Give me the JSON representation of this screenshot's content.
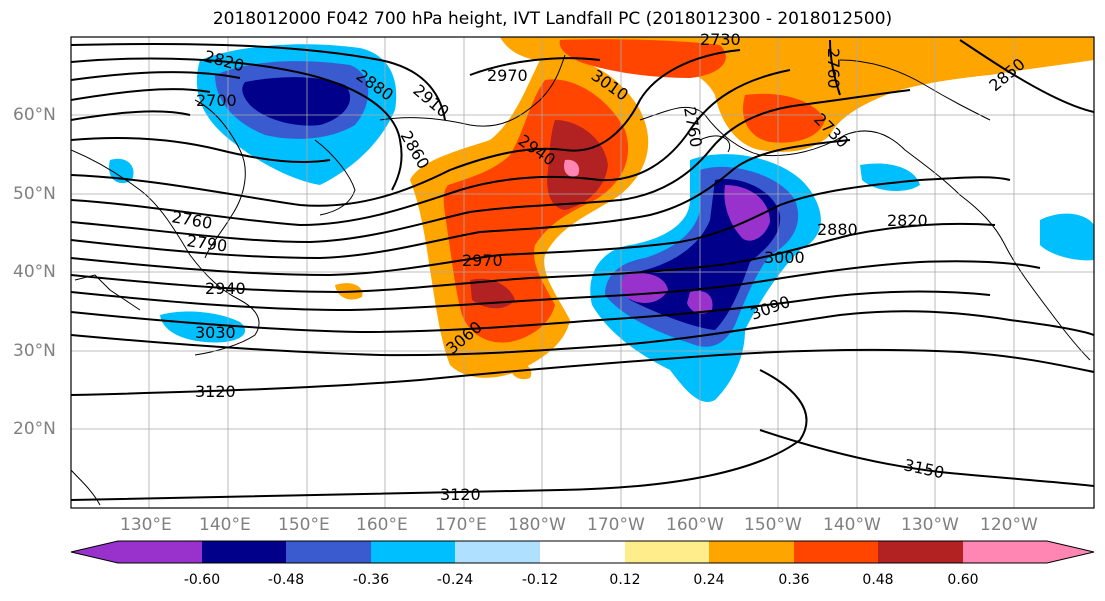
{
  "title": "2018012000 F042 700 hPa height, IVT Landfall PC (2018012300 - 2018012500)",
  "map": {
    "projection": "PlateCarree",
    "lon_range": [
      120,
      251
    ],
    "lat_range": [
      10,
      70
    ]
  },
  "lat_labels": [
    "20°N",
    "30°N",
    "40°N",
    "50°N",
    "60°N"
  ],
  "lon_labels": [
    "130°E",
    "140°E",
    "150°E",
    "160°E",
    "170°E",
    "180°W",
    "170°W",
    "160°W",
    "150°W",
    "140°W",
    "130°W",
    "120°W"
  ],
  "contour_labels": [
    "2820",
    "2880",
    "2910",
    "2700",
    "2860",
    "2970",
    "3010",
    "2730",
    "2760",
    "2850",
    "2940",
    "2730",
    "2760",
    "2760",
    "2790",
    "2820",
    "2880",
    "2970",
    "3000",
    "2940",
    "3030",
    "3060",
    "3090",
    "3120",
    "3120",
    "3150"
  ],
  "colorbar": {
    "colors": [
      "#9932cc",
      "#00008b",
      "#3a5bd0",
      "#00bfff",
      "#b0e0ff",
      "#ffffff",
      "#ffec8b",
      "#ffa500",
      "#ff4500",
      "#b22222",
      "#ff85b3"
    ],
    "tick_labels": [
      "-0.60",
      "-0.48",
      "-0.36",
      "-0.24",
      "-0.12",
      "0.12",
      "0.24",
      "0.36",
      "0.48",
      "0.60"
    ]
  }
}
